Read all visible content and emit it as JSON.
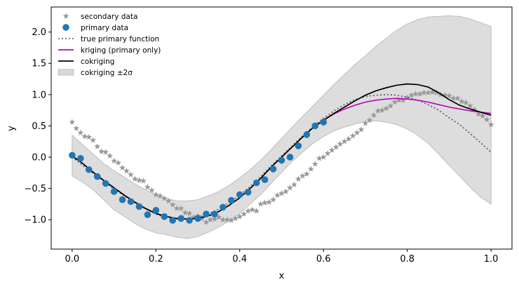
{
  "chart_data": {
    "type": "line",
    "xlabel": "x",
    "ylabel": "y",
    "xlim": [
      -0.05,
      1.05
    ],
    "ylim": [
      -1.47,
      2.4
    ],
    "xticks": [
      0.0,
      0.2,
      0.4,
      0.6,
      0.8,
      1.0
    ],
    "xtick_labels": [
      "0.0",
      "0.2",
      "0.4",
      "0.6",
      "0.8",
      "1.0"
    ],
    "yticks": [
      -1.0,
      -0.5,
      0.0,
      0.5,
      1.0,
      1.5,
      2.0
    ],
    "ytick_labels": [
      "−1.0",
      "−0.5",
      "0.0",
      "0.5",
      "1.0",
      "1.5",
      "2.0"
    ],
    "grid": false,
    "legend_position": "top-left",
    "legend": [
      {
        "label": "secondary data",
        "kind": "star",
        "color": "#999999"
      },
      {
        "label": "primary data",
        "kind": "circle",
        "color": "#1f77b4"
      },
      {
        "label": "true primary function",
        "kind": "dotted",
        "color": "#555555"
      },
      {
        "label": "kriging (primary only)",
        "kind": "line",
        "color": "#bf00bf"
      },
      {
        "label": "cokriging",
        "kind": "line",
        "color": "#000000"
      },
      {
        "label": "cokriging ±2σ",
        "kind": "band",
        "color": "#d9d9d9"
      }
    ],
    "series": [
      {
        "name": "secondary data",
        "kind": "scatter",
        "x": [
          0.0,
          0.01,
          0.02,
          0.03,
          0.04,
          0.05,
          0.06,
          0.07,
          0.08,
          0.09,
          0.1,
          0.11,
          0.12,
          0.13,
          0.14,
          0.15,
          0.16,
          0.17,
          0.18,
          0.19,
          0.2,
          0.21,
          0.22,
          0.23,
          0.24,
          0.25,
          0.26,
          0.27,
          0.28,
          0.29,
          0.3,
          0.31,
          0.32,
          0.33,
          0.34,
          0.35,
          0.36,
          0.37,
          0.38,
          0.39,
          0.4,
          0.41,
          0.42,
          0.43,
          0.44,
          0.45,
          0.46,
          0.47,
          0.48,
          0.49,
          0.5,
          0.51,
          0.52,
          0.53,
          0.54,
          0.55,
          0.56,
          0.57,
          0.58,
          0.59,
          0.6,
          0.61,
          0.62,
          0.63,
          0.64,
          0.65,
          0.66,
          0.67,
          0.68,
          0.69,
          0.7,
          0.71,
          0.72,
          0.73,
          0.74,
          0.75,
          0.76,
          0.77,
          0.78,
          0.79,
          0.8,
          0.81,
          0.82,
          0.83,
          0.84,
          0.85,
          0.86,
          0.87,
          0.88,
          0.89,
          0.9,
          0.91,
          0.92,
          0.93,
          0.94,
          0.95,
          0.96,
          0.97,
          0.98,
          0.99,
          1.0
        ],
        "y": [
          0.56,
          0.46,
          0.39,
          0.33,
          0.32,
          0.27,
          0.17,
          0.09,
          0.08,
          0.02,
          -0.06,
          -0.09,
          -0.17,
          -0.22,
          -0.28,
          -0.35,
          -0.37,
          -0.38,
          -0.48,
          -0.53,
          -0.6,
          -0.62,
          -0.66,
          -0.7,
          -0.76,
          -0.82,
          -0.82,
          -0.89,
          -0.9,
          -0.96,
          -0.94,
          -0.98,
          -1.04,
          -1.0,
          -0.99,
          -0.96,
          -1.0,
          -1.0,
          -1.01,
          -0.98,
          -0.95,
          -0.91,
          -0.86,
          -0.84,
          -0.86,
          -0.75,
          -0.73,
          -0.72,
          -0.68,
          -0.61,
          -0.58,
          -0.55,
          -0.49,
          -0.44,
          -0.35,
          -0.3,
          -0.27,
          -0.19,
          -0.11,
          -0.02,
          -0.0,
          0.06,
          0.11,
          0.16,
          0.21,
          0.25,
          0.29,
          0.34,
          0.39,
          0.44,
          0.54,
          0.59,
          0.67,
          0.74,
          0.75,
          0.78,
          0.82,
          0.88,
          0.91,
          0.91,
          0.95,
          0.99,
          1.01,
          1.01,
          1.03,
          1.03,
          1.04,
          1.03,
          1.0,
          0.99,
          0.98,
          0.94,
          0.94,
          0.89,
          0.87,
          0.82,
          0.76,
          0.69,
          0.66,
          0.6,
          0.52
        ]
      },
      {
        "name": "primary data",
        "kind": "scatter",
        "x": [
          0.0,
          0.02,
          0.04,
          0.06,
          0.08,
          0.1,
          0.12,
          0.14,
          0.16,
          0.18,
          0.2,
          0.22,
          0.24,
          0.26,
          0.28,
          0.3,
          0.32,
          0.34,
          0.36,
          0.38,
          0.4,
          0.42,
          0.44,
          0.46,
          0.48,
          0.5,
          0.52,
          0.54,
          0.56,
          0.58,
          0.6
        ],
        "y": [
          0.03,
          -0.02,
          -0.2,
          -0.31,
          -0.42,
          -0.55,
          -0.68,
          -0.71,
          -0.79,
          -0.92,
          -0.85,
          -0.95,
          -1.01,
          -0.98,
          -1.01,
          -0.98,
          -0.91,
          -0.91,
          -0.8,
          -0.69,
          -0.6,
          -0.56,
          -0.41,
          -0.36,
          -0.19,
          -0.05,
          0.0,
          0.18,
          0.36,
          0.5,
          0.56
        ]
      },
      {
        "name": "true primary function",
        "kind": "dotted",
        "x": [
          0.0,
          0.025,
          0.05,
          0.075,
          0.1,
          0.125,
          0.15,
          0.175,
          0.2,
          0.225,
          0.25,
          0.275,
          0.3,
          0.325,
          0.35,
          0.375,
          0.4,
          0.425,
          0.45,
          0.475,
          0.5,
          0.525,
          0.55,
          0.575,
          0.6,
          0.625,
          0.65,
          0.675,
          0.7,
          0.725,
          0.75,
          0.775,
          0.8,
          0.825,
          0.85,
          0.875,
          0.9,
          0.925,
          0.95,
          0.975,
          1.0
        ],
        "y": [
          0.0,
          -0.13,
          -0.26,
          -0.38,
          -0.51,
          -0.62,
          -0.73,
          -0.83,
          -0.91,
          -0.97,
          -0.99,
          -0.99,
          -0.96,
          -0.91,
          -0.83,
          -0.73,
          -0.61,
          -0.47,
          -0.31,
          -0.14,
          0.02,
          0.18,
          0.34,
          0.49,
          0.62,
          0.74,
          0.84,
          0.92,
          0.97,
          0.99,
          1.0,
          0.99,
          0.96,
          0.91,
          0.84,
          0.75,
          0.63,
          0.52,
          0.38,
          0.23,
          0.08
        ]
      },
      {
        "name": "kriging (primary only)",
        "kind": "line",
        "x": [
          0.0,
          0.025,
          0.05,
          0.075,
          0.1,
          0.125,
          0.15,
          0.175,
          0.2,
          0.225,
          0.25,
          0.275,
          0.3,
          0.325,
          0.35,
          0.375,
          0.4,
          0.425,
          0.45,
          0.475,
          0.5,
          0.525,
          0.55,
          0.575,
          0.6,
          0.625,
          0.65,
          0.675,
          0.7,
          0.725,
          0.75,
          0.775,
          0.8,
          0.825,
          0.85,
          0.875,
          0.9,
          0.925,
          0.95,
          0.975,
          1.0
        ],
        "y": [
          0.02,
          -0.1,
          -0.24,
          -0.37,
          -0.49,
          -0.61,
          -0.72,
          -0.82,
          -0.9,
          -0.95,
          -0.98,
          -0.99,
          -0.98,
          -0.94,
          -0.87,
          -0.77,
          -0.65,
          -0.5,
          -0.34,
          -0.16,
          0.0,
          0.16,
          0.32,
          0.47,
          0.59,
          0.69,
          0.77,
          0.83,
          0.88,
          0.91,
          0.93,
          0.94,
          0.93,
          0.91,
          0.88,
          0.84,
          0.8,
          0.77,
          0.74,
          0.72,
          0.7
        ]
      },
      {
        "name": "cokriging",
        "kind": "line",
        "x": [
          0.0,
          0.025,
          0.05,
          0.075,
          0.1,
          0.125,
          0.15,
          0.175,
          0.2,
          0.225,
          0.25,
          0.275,
          0.3,
          0.325,
          0.35,
          0.375,
          0.4,
          0.425,
          0.45,
          0.475,
          0.5,
          0.525,
          0.55,
          0.575,
          0.6,
          0.625,
          0.65,
          0.675,
          0.7,
          0.725,
          0.75,
          0.775,
          0.8,
          0.825,
          0.85,
          0.875,
          0.9,
          0.925,
          0.95,
          0.975,
          1.0
        ],
        "y": [
          0.02,
          -0.1,
          -0.24,
          -0.37,
          -0.49,
          -0.61,
          -0.72,
          -0.82,
          -0.9,
          -0.95,
          -0.98,
          -0.99,
          -0.98,
          -0.94,
          -0.87,
          -0.77,
          -0.65,
          -0.5,
          -0.34,
          -0.16,
          0.0,
          0.16,
          0.32,
          0.47,
          0.59,
          0.7,
          0.8,
          0.9,
          0.99,
          1.06,
          1.11,
          1.15,
          1.17,
          1.16,
          1.12,
          1.03,
          0.92,
          0.83,
          0.77,
          0.72,
          0.67
        ]
      },
      {
        "name": "cokriging ±2σ",
        "kind": "band",
        "x": [
          0.0,
          0.025,
          0.05,
          0.075,
          0.1,
          0.125,
          0.15,
          0.175,
          0.2,
          0.225,
          0.25,
          0.275,
          0.3,
          0.325,
          0.35,
          0.375,
          0.4,
          0.425,
          0.45,
          0.475,
          0.5,
          0.525,
          0.55,
          0.575,
          0.6,
          0.625,
          0.65,
          0.675,
          0.7,
          0.725,
          0.75,
          0.775,
          0.8,
          0.825,
          0.85,
          0.875,
          0.9,
          0.925,
          0.95,
          0.975,
          1.0
        ],
        "lower": [
          -0.3,
          -0.4,
          -0.52,
          -0.68,
          -0.84,
          -0.95,
          -1.06,
          -1.15,
          -1.21,
          -1.24,
          -1.28,
          -1.3,
          -1.27,
          -1.2,
          -1.12,
          -1.02,
          -0.9,
          -0.75,
          -0.6,
          -0.42,
          -0.24,
          -0.07,
          0.08,
          0.22,
          0.33,
          0.42,
          0.48,
          0.53,
          0.57,
          0.58,
          0.56,
          0.52,
          0.45,
          0.35,
          0.22,
          0.05,
          -0.13,
          -0.3,
          -0.48,
          -0.64,
          -0.75
        ],
        "upper": [
          0.35,
          0.2,
          0.05,
          -0.1,
          -0.22,
          -0.32,
          -0.43,
          -0.52,
          -0.6,
          -0.66,
          -0.7,
          -0.7,
          -0.68,
          -0.62,
          -0.55,
          -0.45,
          -0.33,
          -0.2,
          -0.05,
          0.12,
          0.3,
          0.48,
          0.65,
          0.82,
          0.99,
          1.16,
          1.32,
          1.48,
          1.62,
          1.77,
          1.9,
          2.03,
          2.13,
          2.2,
          2.24,
          2.25,
          2.26,
          2.25,
          2.21,
          2.15,
          2.09
        ]
      }
    ]
  }
}
